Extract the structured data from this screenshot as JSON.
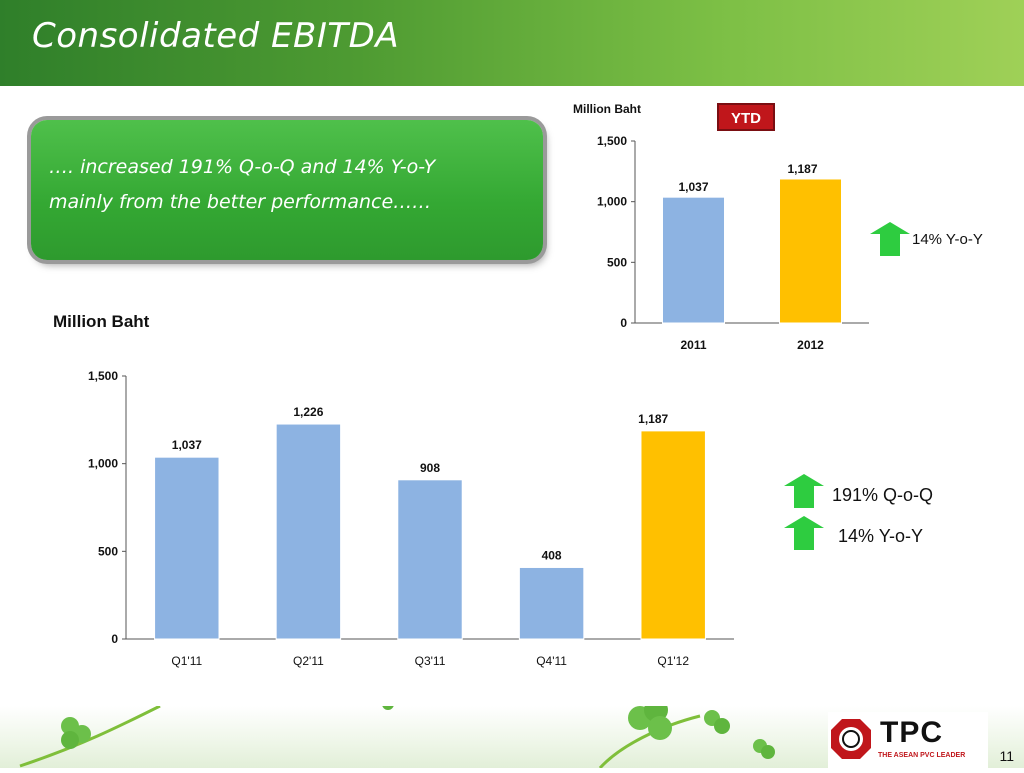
{
  "title": "Consolidated EBITDA",
  "callout": {
    "line1": "…. increased 191% Q-o-Q and 14% Y-o-Y",
    "line2": "mainly from  the better performance……"
  },
  "ytd_badge": "YTD",
  "growth": {
    "ytd_yoy": "14% Y-o-Y",
    "qoq": "191% Q-o-Q",
    "yoy": "14% Y-o-Y"
  },
  "page_number": "11",
  "logo": {
    "word": "TPC",
    "tagline": "THE ASEAN PVC LEADER"
  },
  "colors": {
    "bar_blue": "#8db3e2",
    "bar_gold": "#ffc000",
    "arrow_green": "#2ecc40",
    "badge_red": "#c0161b"
  },
  "chart_data": [
    {
      "type": "bar",
      "title": "",
      "ylabel": "Million Baht",
      "categories": [
        "2011",
        "2012"
      ],
      "values": [
        1037,
        1187
      ],
      "value_labels": [
        "1,037",
        "1,187"
      ],
      "bar_colors": [
        "#8db3e2",
        "#ffc000"
      ],
      "ylim": [
        0,
        1500
      ],
      "yticks": [
        0,
        500,
        1000,
        1500
      ],
      "ytick_labels": [
        "0",
        "500",
        "1,000",
        "1,500"
      ],
      "grid": false,
      "legend": "none"
    },
    {
      "type": "bar",
      "title": "",
      "ylabel": "Million Baht",
      "categories": [
        "Q1'11",
        "Q2'11",
        "Q3'11",
        "Q4'11",
        "Q1'12"
      ],
      "values": [
        1037,
        1226,
        908,
        408,
        1187
      ],
      "value_labels": [
        "1,037",
        "1,226",
        "908",
        "408",
        "1,187"
      ],
      "bar_colors": [
        "#8db3e2",
        "#8db3e2",
        "#8db3e2",
        "#8db3e2",
        "#ffc000"
      ],
      "ylim": [
        0,
        1500
      ],
      "yticks": [
        0,
        500,
        1000,
        1500
      ],
      "ytick_labels": [
        "0",
        "500",
        "1,000",
        "1,500"
      ],
      "grid": false,
      "legend": "none"
    }
  ]
}
